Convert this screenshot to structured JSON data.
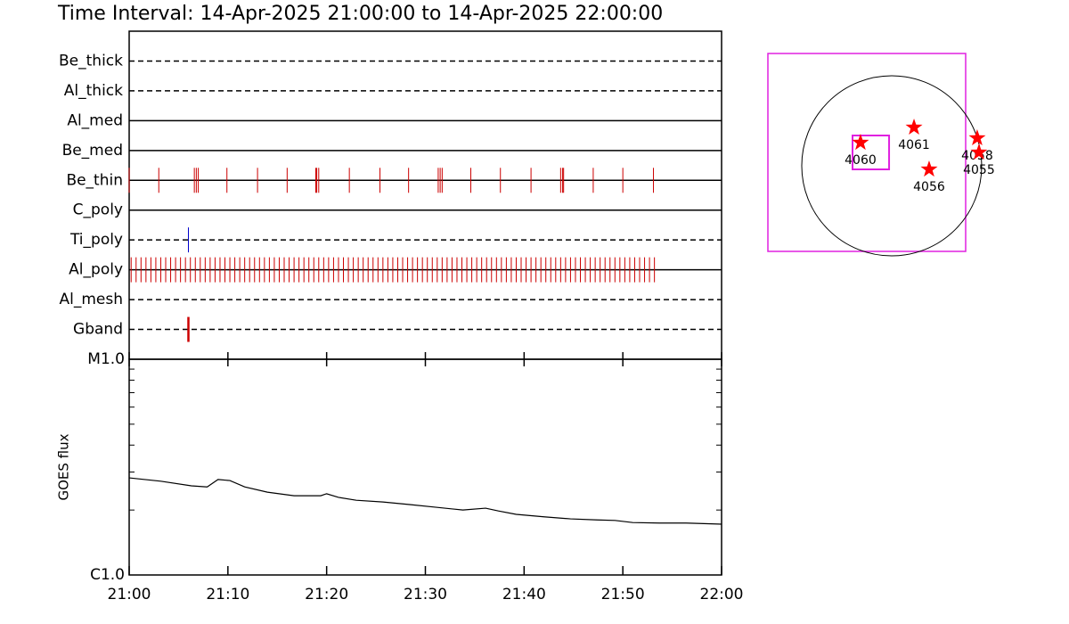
{
  "chart_data": [
    {
      "type": "timeline",
      "title": "Time Interval: 14-Apr-2025 21:00:00 to 14-Apr-2025 22:00:00",
      "categories": [
        "Be_thick",
        "Al_thick",
        "Al_med",
        "Be_med",
        "Be_thin",
        "C_poly",
        "Ti_poly",
        "Al_poly",
        "Al_mesh",
        "Gband"
      ],
      "line_styles": [
        "dashed",
        "dashed",
        "solid",
        "solid",
        "solid",
        "solid",
        "dashed",
        "solid",
        "dashed",
        "dashed"
      ],
      "event_colors": [
        "#cc0000",
        "#cc0000",
        "#cc0000",
        "#cc0000",
        "#cc0000",
        "#cc0000",
        "#0000cc",
        "#cc0000",
        "#cc0000",
        "#cc0000"
      ],
      "events": [
        [],
        [],
        [],
        [],
        [
          0,
          3.0,
          6.6,
          6.8,
          7.0,
          9.9,
          13.0,
          16.0,
          18.9,
          19.0,
          19.2,
          22.3,
          25.4,
          28.3,
          31.3,
          31.5,
          31.7,
          34.6,
          37.6,
          40.7,
          43.7,
          43.9,
          44.0,
          47.0,
          50.0,
          53.1
        ],
        [],
        [
          6.0
        ],
        [
          0.2,
          0.7,
          1.2,
          1.7,
          2.2,
          2.7,
          3.2,
          3.7,
          4.2,
          4.7,
          5.2,
          5.7,
          6.2,
          6.7,
          7.2,
          7.7,
          8.2,
          8.7,
          9.2,
          9.7,
          10.2,
          10.7,
          11.2,
          11.7,
          12.2,
          12.7,
          13.2,
          13.7,
          14.2,
          14.7,
          15.2,
          15.7,
          16.2,
          16.7,
          17.2,
          17.7,
          18.2,
          18.7,
          19.2,
          19.7,
          20.2,
          20.7,
          21.2,
          21.7,
          22.2,
          22.7,
          23.2,
          23.7,
          24.2,
          24.7,
          25.2,
          25.7,
          26.2,
          26.7,
          27.2,
          27.7,
          28.2,
          28.7,
          29.2,
          29.7,
          30.2,
          30.7,
          31.2,
          31.7,
          32.2,
          32.7,
          33.2,
          33.7,
          34.2,
          34.7,
          35.2,
          35.7,
          36.2,
          36.7,
          37.2,
          37.7,
          38.2,
          38.7,
          39.2,
          39.7,
          40.2,
          40.7,
          41.2,
          41.7,
          42.2,
          42.7,
          43.2,
          43.7,
          44.2,
          44.7,
          45.2,
          45.7,
          46.2,
          46.7,
          47.2,
          47.7,
          48.2,
          48.7,
          49.2,
          49.7,
          50.2,
          50.7,
          51.2,
          51.7,
          52.2,
          52.7,
          53.2
        ],
        [],
        [
          6.0
        ]
      ],
      "xlim": [
        0,
        60
      ]
    },
    {
      "type": "line",
      "y_label": "GOES flux",
      "x": [
        0,
        3.2,
        6.3,
        7.9,
        9.0,
        10.2,
        11.7,
        14.0,
        16.7,
        19.4,
        20.0,
        21.2,
        23.0,
        25.7,
        28.4,
        31.1,
        33.8,
        36.1,
        37.4,
        39.2,
        42.0,
        44.7,
        47.4,
        49.2,
        51.0,
        53.7,
        56.4,
        60
      ],
      "values": [
        2.82e-06,
        2.72e-06,
        2.59e-06,
        2.56e-06,
        2.77e-06,
        2.74e-06,
        2.56e-06,
        2.42e-06,
        2.33e-06,
        2.33e-06,
        2.38e-06,
        2.29e-06,
        2.22e-06,
        2.18e-06,
        2.12e-06,
        2.06e-06,
        2e-06,
        2.04e-06,
        1.98e-06,
        1.91e-06,
        1.86e-06,
        1.82e-06,
        1.8e-06,
        1.79e-06,
        1.75e-06,
        1.74e-06,
        1.74e-06,
        1.72e-06
      ],
      "color": "#000000",
      "log_y": true,
      "xlim": [
        0,
        60
      ],
      "xticks": [
        {
          "value": 0,
          "label": "21:00"
        },
        {
          "value": 10,
          "label": "21:10"
        },
        {
          "value": 20,
          "label": "21:20"
        },
        {
          "value": 30,
          "label": "21:30"
        },
        {
          "value": 40,
          "label": "21:40"
        },
        {
          "value": 50,
          "label": "21:50"
        },
        {
          "value": 60,
          "label": "22:00"
        }
      ],
      "ylim": [
        1e-06,
        1e-05
      ],
      "yticks": [
        {
          "value": 1e-06,
          "label": "C1.0"
        },
        {
          "value": 1e-05,
          "label": "M1.0"
        }
      ],
      "yminorticks": [
        2e-06,
        3e-06,
        4e-06,
        5e-06,
        6e-06,
        7e-06,
        8e-06,
        9e-06
      ]
    },
    {
      "type": "map",
      "xlim": [
        -1321,
        789
      ],
      "ylim": [
        -912,
        1197
      ],
      "sun_radius": 960,
      "frame_color": "#e020e0",
      "star_color": "#ff0000",
      "fov": {
        "x": [
          -418,
          -28
        ],
        "y": [
          -38,
          323
        ]
      },
      "points": [
        {
          "label": "4060",
          "x": -333,
          "y": 247
        },
        {
          "label": "4061",
          "x": 238,
          "y": 409
        },
        {
          "label": "4056",
          "x": 399,
          "y": -38
        },
        {
          "label": "4058",
          "x": 912,
          "y": 295
        },
        {
          "label": "4055",
          "x": 931,
          "y": 143
        }
      ]
    }
  ]
}
